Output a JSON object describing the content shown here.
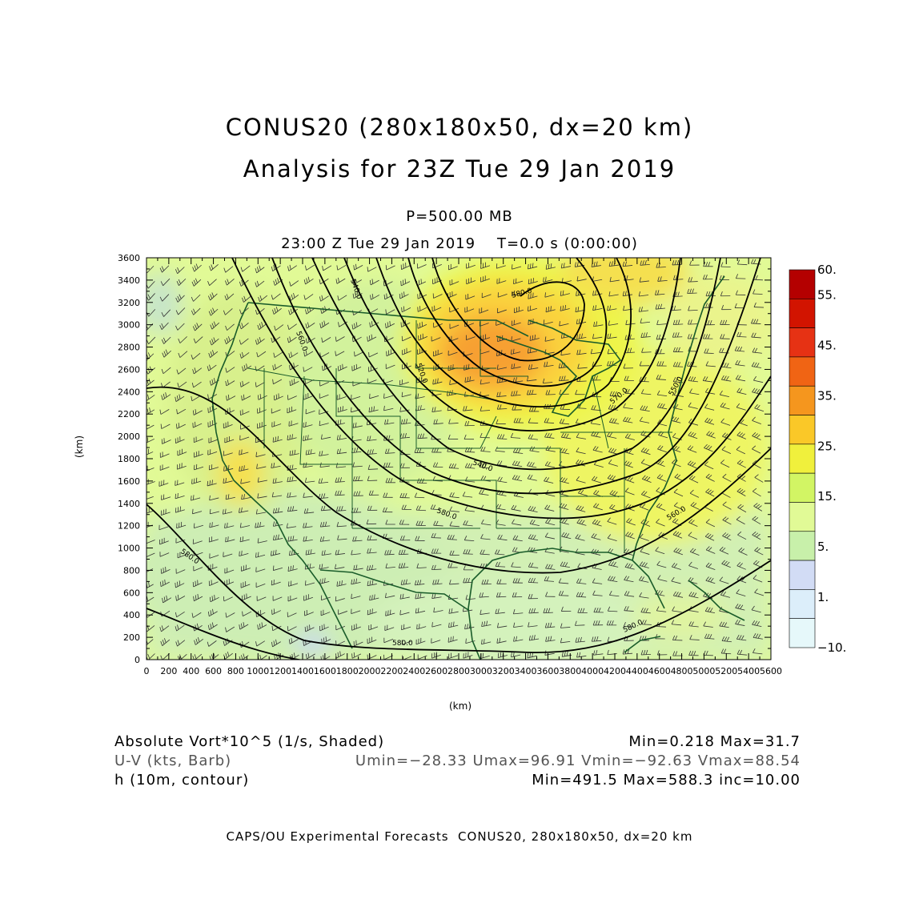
{
  "title": {
    "line1": "CONUS20 (280x180x50, dx=20 km)",
    "line2": "Analysis for 23Z Tue 29 Jan 2019"
  },
  "level_label": "P=500.00 MB",
  "time_label": "23:00 Z Tue 29 Jan 2019    T=0.0 s (0:00:00)",
  "axes": {
    "x_unit": "(km)",
    "y_unit": "(km)",
    "x_range": [
      0,
      5600
    ],
    "y_range": [
      0,
      3600
    ],
    "x_ticks": [
      "0",
      "200",
      "400",
      "600",
      "800",
      "1000",
      "1200",
      "1400",
      "1600",
      "1800",
      "2000",
      "2200",
      "2400",
      "2600",
      "2800",
      "3000",
      "3200",
      "3400",
      "3600",
      "3800",
      "4000",
      "4200",
      "4400",
      "4600",
      "4800",
      "5000",
      "5200",
      "5400",
      "5600"
    ],
    "y_ticks": [
      "0",
      "200",
      "400",
      "600",
      "800",
      "1000",
      "1200",
      "1400",
      "1600",
      "1800",
      "2000",
      "2200",
      "2400",
      "2600",
      "2800",
      "3000",
      "3200",
      "3400",
      "3600"
    ]
  },
  "colorbar": {
    "labels": [
      "60.",
      "55.",
      "45.",
      "35.",
      "25.",
      "15.",
      "5.",
      "1.",
      "−10."
    ],
    "colors": [
      "#b40000",
      "#d21400",
      "#e63214",
      "#f06414",
      "#f5961e",
      "#fac828",
      "#f0f03c",
      "#d2f564",
      "#e1fa96",
      "#c8f0aa",
      "#d2dcf5",
      "#dceefa",
      "#e6f8fa"
    ]
  },
  "contours": {
    "labels": [
      "540.0",
      "550.0",
      "560.0",
      "570.0",
      "580.0",
      "520.0",
      "530.0"
    ]
  },
  "info": {
    "field1_name": "Absolute Vort*10^5 (1/s, Shaded)",
    "field1_stats": "Min=0.218 Max=31.7",
    "field2_name": "U-V (kts, Barb)",
    "field2_stats": "Umin=−28.33 Umax=96.91 Vmin=−92.63 Vmax=88.54",
    "field3_name": "h (10m, contour)",
    "field3_stats": "Min=491.5 Max=588.3 inc=10.00"
  },
  "footer": "CAPS/OU Experimental Forecasts  CONUS20, 280x180x50, dx=20 km"
}
